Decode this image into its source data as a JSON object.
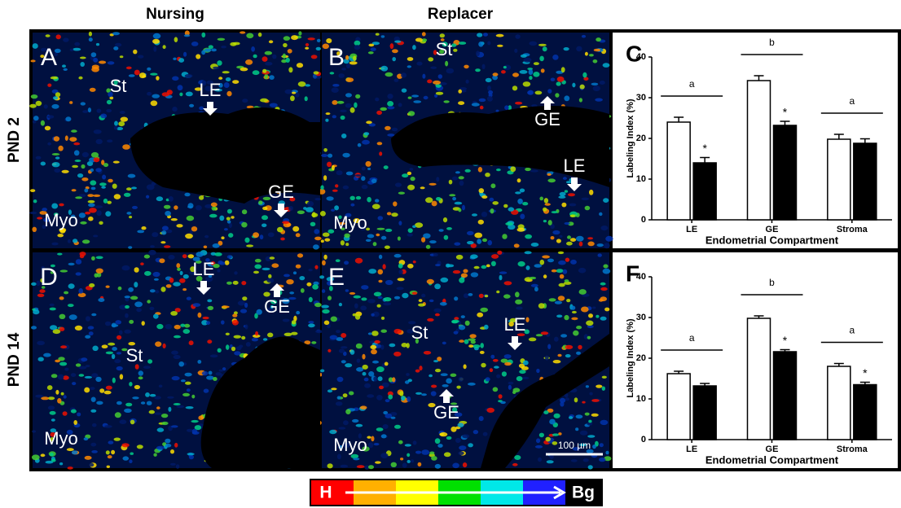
{
  "column_headers": [
    "Nursing",
    "Replacer"
  ],
  "row_headers": [
    "PND 2",
    "PND 14"
  ],
  "micrographs": [
    {
      "letter": "A",
      "labels": [
        "St",
        "LE",
        "GE",
        "Myo"
      ]
    },
    {
      "letter": "B",
      "labels": [
        "St",
        "GE",
        "LE",
        "Myo"
      ]
    },
    {
      "letter": "D",
      "labels": [
        "LE",
        "GE",
        "St",
        "Myo"
      ]
    },
    {
      "letter": "E",
      "labels": [
        "St",
        "LE",
        "GE",
        "Myo"
      ],
      "scale_bar": "100 µm"
    }
  ],
  "chart_data": [
    {
      "type": "bar",
      "panel_letter": "C",
      "ylabel": "Labeling Index (%)",
      "xlabel": "Endometrial Compartment",
      "categories": [
        "LE",
        "GE",
        "Stroma"
      ],
      "group_letters": [
        "a",
        "b",
        "a"
      ],
      "series": [
        {
          "color": "#ffffff",
          "values": [
            24,
            34.2,
            19.8
          ],
          "errors": [
            1.2,
            1.2,
            1.2
          ]
        },
        {
          "color": "#000000",
          "values": [
            14,
            23.2,
            18.8
          ],
          "errors": [
            1.3,
            1,
            1.1
          ],
          "significance": [
            "*",
            "*",
            null
          ]
        }
      ],
      "ylim": [
        0,
        40
      ],
      "yticks": [
        0,
        10,
        20,
        30,
        40
      ]
    },
    {
      "type": "bar",
      "panel_letter": "F",
      "ylabel": "Labeling Index (%)",
      "xlabel": "Endometrial Compartment",
      "categories": [
        "LE",
        "GE",
        "Stroma"
      ],
      "group_letters": [
        "a",
        "b",
        "a"
      ],
      "series": [
        {
          "color": "#ffffff",
          "values": [
            16.2,
            29.8,
            18
          ],
          "errors": [
            0.6,
            0.6,
            0.7
          ]
        },
        {
          "color": "#000000",
          "values": [
            13.2,
            21.6,
            13.5
          ],
          "errors": [
            0.6,
            0.5,
            0.6
          ],
          "significance": [
            null,
            "*",
            "*"
          ]
        }
      ],
      "ylim": [
        0,
        40
      ],
      "yticks": [
        0,
        10,
        20,
        30,
        40
      ]
    }
  ],
  "colorbar": {
    "start": "H",
    "end": "Bg"
  }
}
